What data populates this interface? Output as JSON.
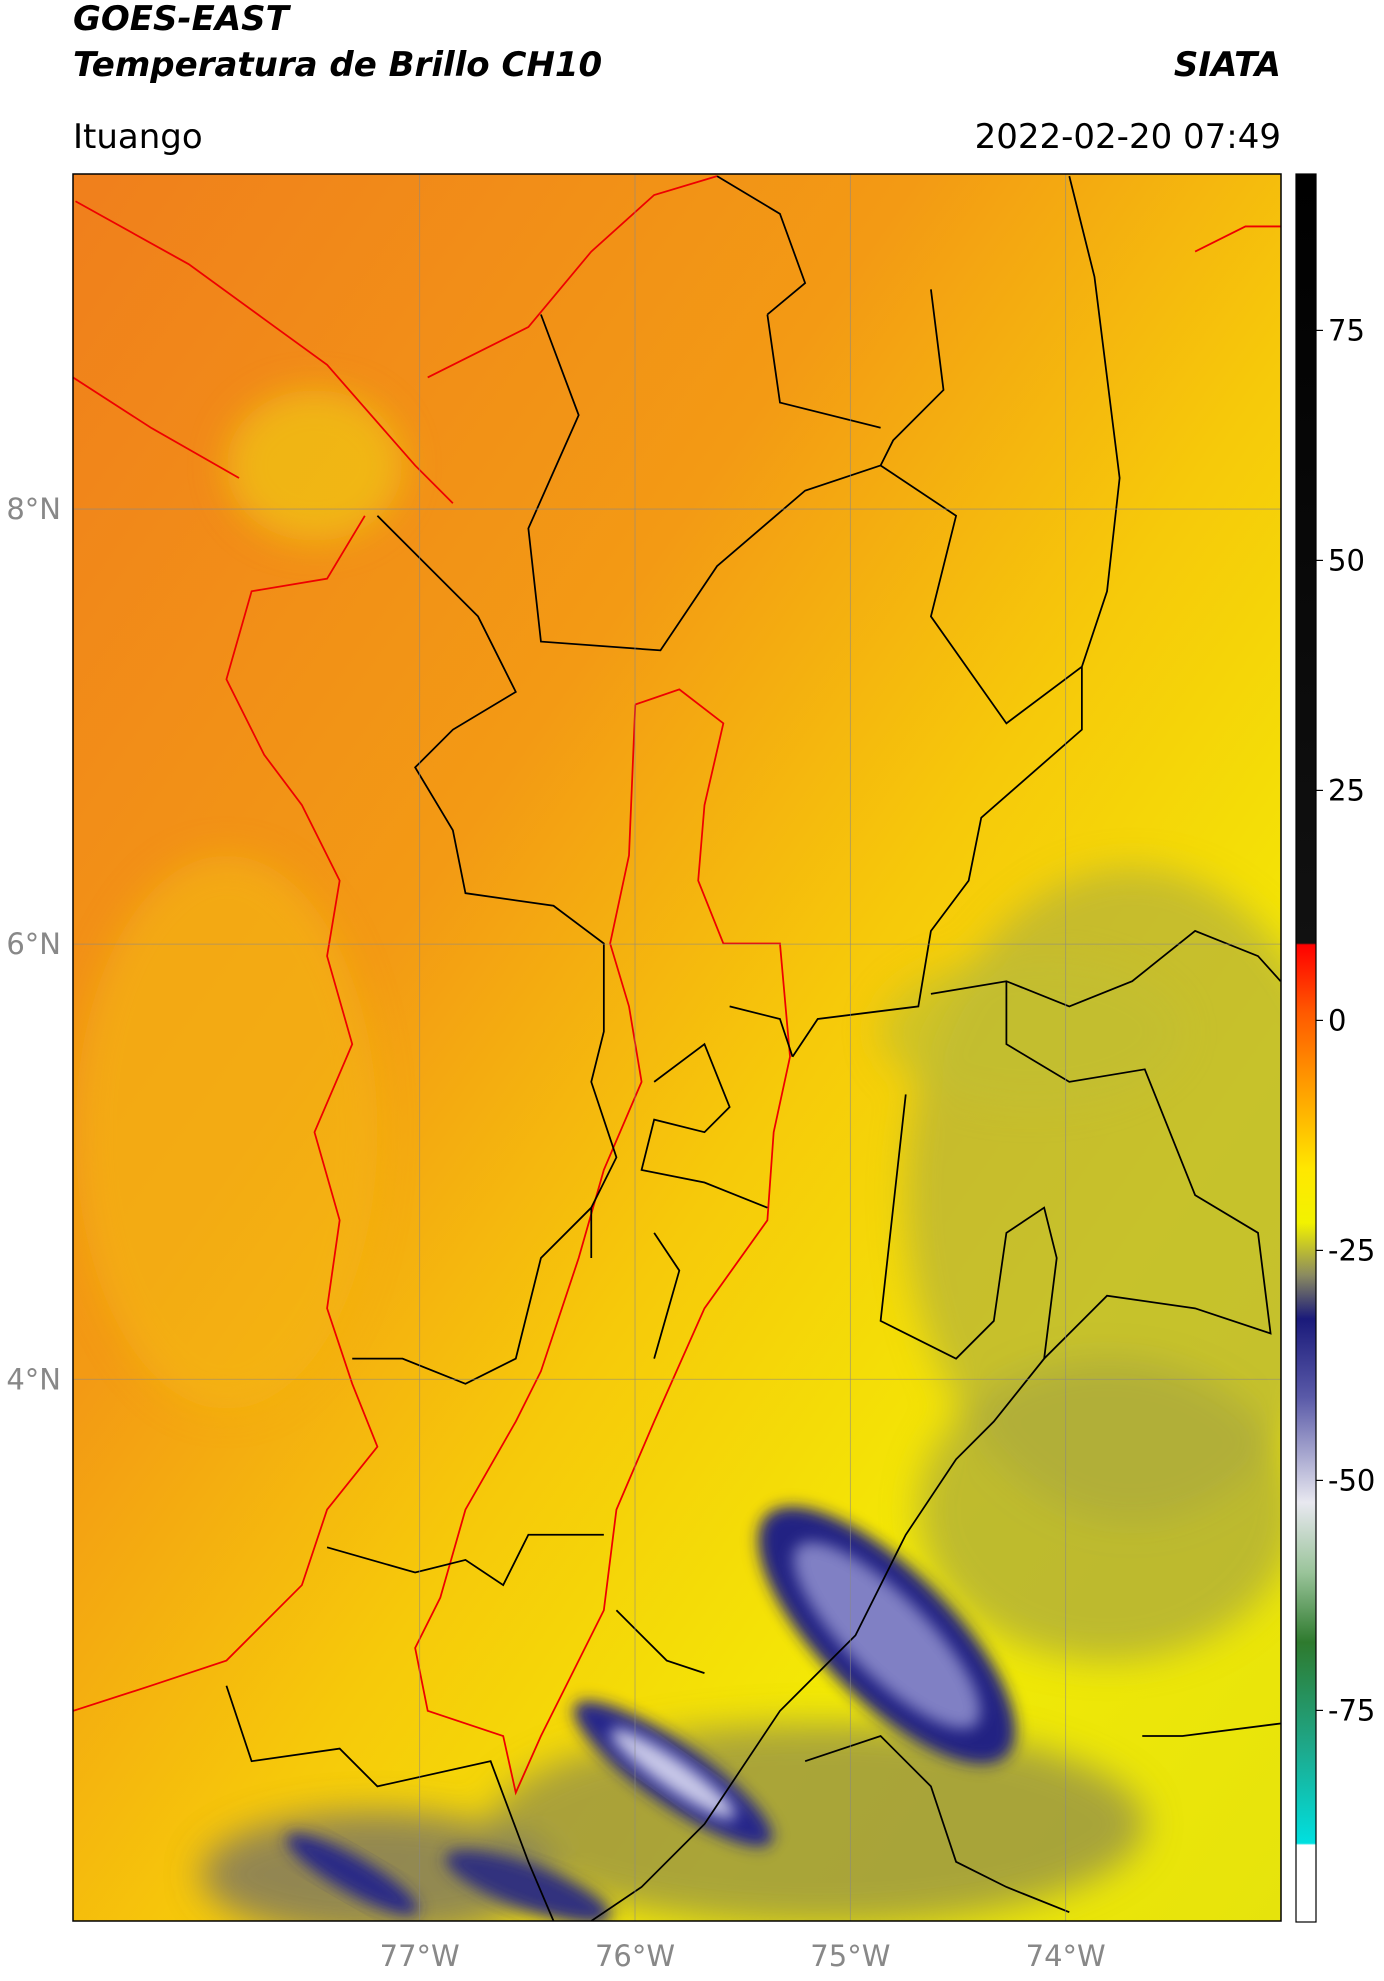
{
  "header": {
    "title_line1": "GOES-EAST",
    "title_line2": "Temperatura de Brillo CH10",
    "brand": "SIATA",
    "location": "Ituango",
    "timestamp": "2022-02-20 07:49"
  },
  "map": {
    "lonlim": [
      -78.61,
      -73.0
    ],
    "latlim": [
      1.51,
      9.54
    ],
    "lon_ticks": [
      {
        "value": -77,
        "label": "77°W"
      },
      {
        "value": -76,
        "label": "76°W"
      },
      {
        "value": -75,
        "label": "75°W"
      },
      {
        "value": -74,
        "label": "74°W"
      }
    ],
    "lat_ticks": [
      {
        "value": 8,
        "label": "8°N"
      },
      {
        "value": 6,
        "label": "6°N"
      },
      {
        "value": 4,
        "label": "4°N"
      }
    ]
  },
  "colorbar": {
    "lim": [
      -98,
      92
    ],
    "ticks": [
      75,
      50,
      25,
      0,
      -25,
      -50,
      -75
    ]
  }
}
